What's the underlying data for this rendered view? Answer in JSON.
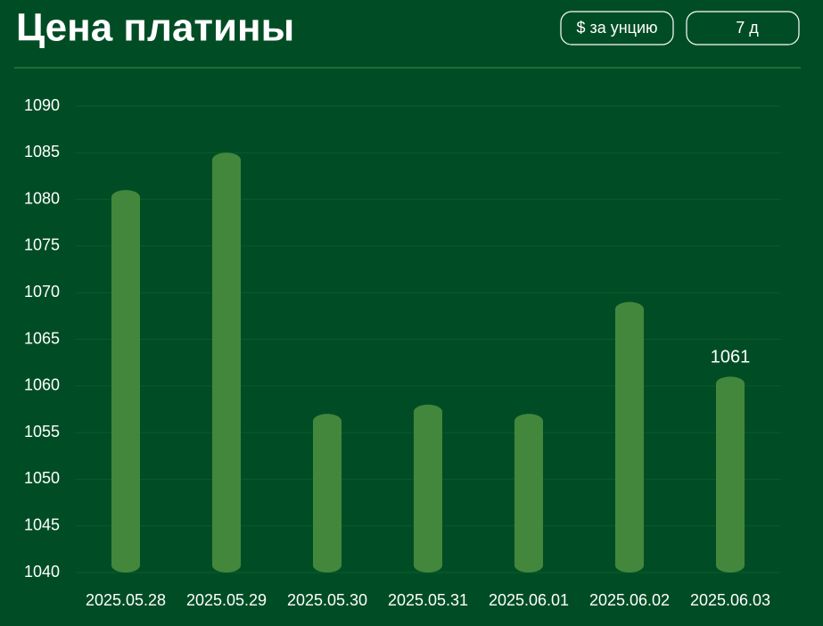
{
  "header": {
    "title": "Цена платины",
    "unit_button": "$ за унцию",
    "period_button": "7 д"
  },
  "chart_data": {
    "type": "bar",
    "categories": [
      "2025.05.28",
      "2025.05.29",
      "2025.05.30",
      "2025.05.31",
      "2025.06.01",
      "2025.06.02",
      "2025.06.03"
    ],
    "values": [
      1081,
      1085,
      1057,
      1058,
      1057,
      1069,
      1061
    ],
    "value_labels": [
      null,
      null,
      null,
      null,
      null,
      null,
      "1061"
    ],
    "color": "#43873d",
    "ylim": [
      1040,
      1090
    ],
    "yticks": [
      1040,
      1045,
      1050,
      1055,
      1060,
      1065,
      1070,
      1075,
      1080,
      1085,
      1090
    ],
    "grid": true
  }
}
